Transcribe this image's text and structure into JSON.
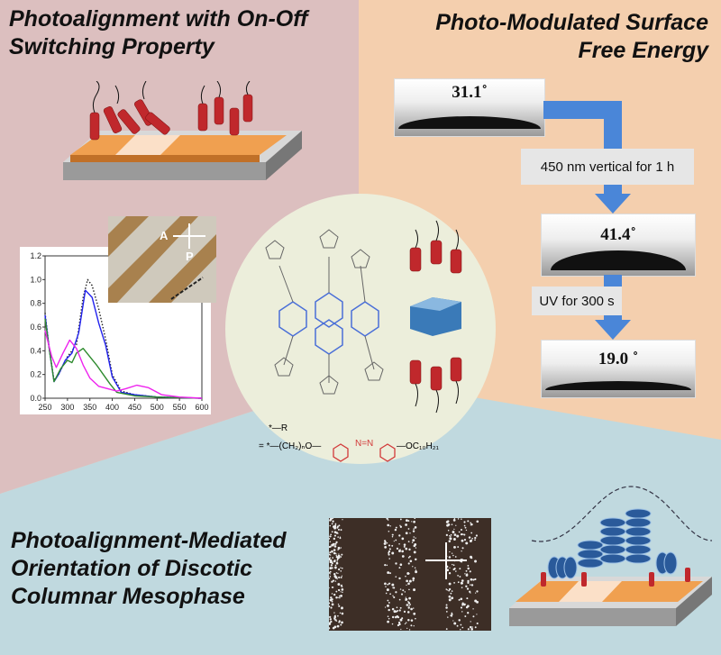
{
  "panels": {
    "top_left": {
      "title_lines": [
        "Photoalignment with On-Off",
        "Switching Property"
      ],
      "color": "#dcbfbf"
    },
    "top_right": {
      "title_lines": [
        "Photo-Modulated Surface",
        "Free Energy"
      ],
      "color": "#f4cfae"
    },
    "bottom": {
      "title_lines": [
        "Photoalignment-Mediated",
        "Orientation of Discotic",
        "Columnar Mesophase"
      ],
      "color": "#c0d9df"
    },
    "center": {
      "color": "#eceedb"
    }
  },
  "polarizer_labels": {
    "analyzer": "A",
    "polarizer": "P"
  },
  "contact_angles": [
    {
      "value": "31.1˚"
    },
    {
      "value": "41.4˚"
    },
    {
      "value": "19.0 ˚"
    }
  ],
  "steps": [
    {
      "label": "450 nm vertical for 1 h"
    },
    {
      "label": "UV for 300 s"
    }
  ],
  "arrow_color": "#4a86d8",
  "structure": {
    "r_def": "*—R",
    "formula_prefix": "= *—(CH₂)ₙO—",
    "azo": "N=N",
    "tail": "—OC₁₀H₂₁",
    "substituent": "R",
    "azo_color": "#d23a3a",
    "core_color": "#4a6fd8"
  },
  "chart_data": {
    "type": "line",
    "xlim": [
      250,
      600
    ],
    "ylim": [
      0,
      1.2
    ],
    "xticks": [
      "250",
      "300",
      "350",
      "400",
      "450",
      "500",
      "550",
      "600"
    ],
    "yticks": [
      "0.0",
      "0.2",
      "0.4",
      "0.6",
      "0.8",
      "1.0",
      "1.2"
    ],
    "grid": false,
    "series": [
      {
        "color": "#222222",
        "style": "dotted",
        "x": [
          250,
          260,
          270,
          280,
          300,
          320,
          335,
          345,
          355,
          370,
          385,
          400,
          420,
          450,
          500,
          600
        ],
        "y": [
          0.72,
          0.4,
          0.15,
          0.2,
          0.35,
          0.45,
          0.85,
          1.0,
          0.95,
          0.75,
          0.5,
          0.2,
          0.06,
          0.03,
          0.01,
          0
        ]
      },
      {
        "color": "#2222ee",
        "style": "solid",
        "x": [
          250,
          260,
          270,
          280,
          295,
          310,
          325,
          340,
          355,
          370,
          385,
          400,
          420,
          450,
          500,
          600
        ],
        "y": [
          0.7,
          0.4,
          0.14,
          0.2,
          0.32,
          0.38,
          0.55,
          0.91,
          0.85,
          0.63,
          0.45,
          0.18,
          0.05,
          0.03,
          0.01,
          0
        ]
      },
      {
        "color": "#2e8b2e",
        "style": "solid",
        "x": [
          250,
          260,
          270,
          285,
          300,
          310,
          320,
          335,
          350,
          365,
          380,
          395,
          410,
          450,
          500,
          600
        ],
        "y": [
          0.67,
          0.4,
          0.14,
          0.25,
          0.32,
          0.3,
          0.38,
          0.42,
          0.35,
          0.28,
          0.2,
          0.12,
          0.05,
          0.02,
          0.01,
          0
        ]
      },
      {
        "color": "#ee22ee",
        "style": "solid",
        "x": [
          250,
          265,
          275,
          290,
          305,
          320,
          335,
          350,
          370,
          390,
          410,
          430,
          455,
          480,
          510,
          550,
          600
        ],
        "y": [
          0.57,
          0.35,
          0.26,
          0.38,
          0.49,
          0.42,
          0.28,
          0.17,
          0.1,
          0.08,
          0.06,
          0.08,
          0.11,
          0.09,
          0.03,
          0.01,
          0
        ]
      }
    ]
  }
}
